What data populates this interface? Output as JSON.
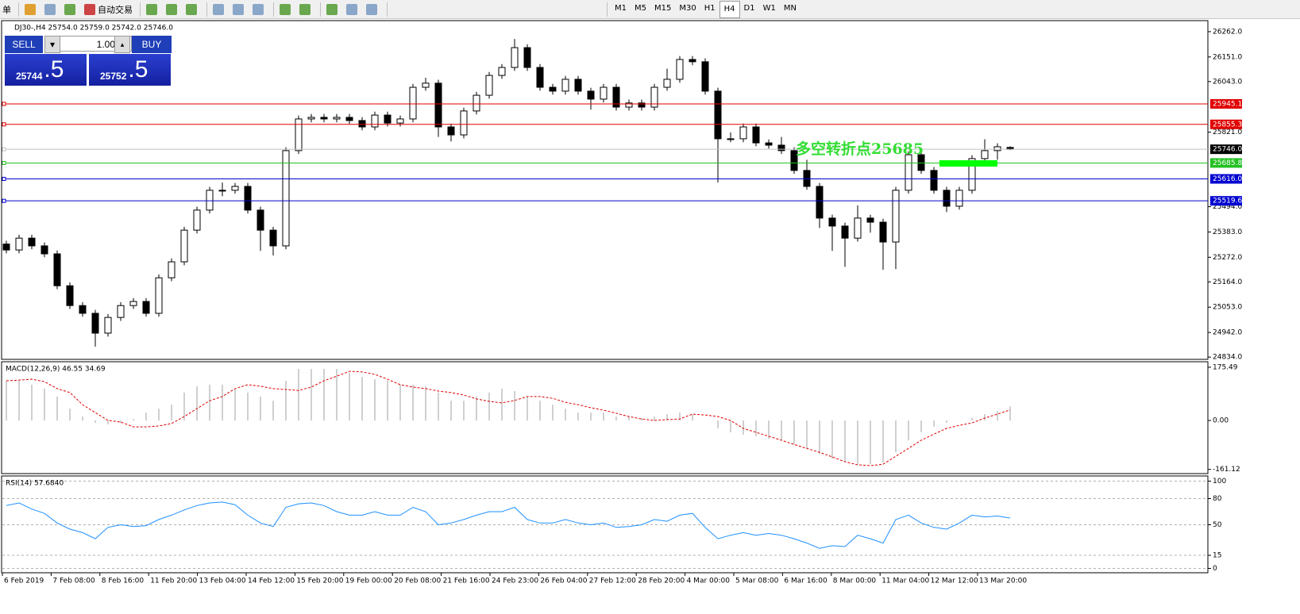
{
  "toolbar": {
    "order": "单",
    "auto_trading": "自动交易",
    "periods": [
      "M1",
      "M5",
      "M15",
      "M30",
      "H1",
      "H4",
      "D1",
      "W1",
      "MN"
    ]
  },
  "trade_panel": {
    "sell": "SELL",
    "buy": "BUY",
    "volume": "1.00",
    "sell_price_main": "25744",
    "sell_price_tail": ".5",
    "buy_price_main": "25752",
    "buy_price_tail": ".5"
  },
  "chart_data": [
    {
      "type": "candlestick",
      "title": "DJ30-,H4  25754.0 25759.0 25742.0 25746.0",
      "ylim": [
        24824,
        26307
      ],
      "yticks": [
        {
          "value": 26262,
          "label": "26262.0"
        },
        {
          "value": 26151,
          "label": "26151.0"
        },
        {
          "value": 26043,
          "label": "26043.0"
        },
        {
          "value": 25821,
          "label": "25821.0"
        },
        {
          "value": 25494,
          "label": "25494.0"
        },
        {
          "value": 25383,
          "label": "25383.0"
        },
        {
          "value": 25272,
          "label": "25272.0"
        },
        {
          "value": 25164,
          "label": "25164.0"
        },
        {
          "value": 25053,
          "label": "25053.0"
        },
        {
          "value": 24942,
          "label": "24942.0"
        },
        {
          "value": 24834,
          "label": "24834.0"
        }
      ],
      "open": [
        25330,
        25304,
        25356,
        25322,
        25287,
        25147,
        25060,
        25026,
        24939,
        25008,
        25060,
        25078,
        25026,
        25182,
        25252,
        25391,
        25479,
        25566,
        25566,
        25583,
        25479,
        25391,
        25322,
        25740,
        25879,
        25886,
        25879,
        25886,
        25872,
        25844,
        25896,
        25861,
        25879,
        26018,
        26036,
        25844,
        25809,
        25914,
        25983,
        26070,
        26105,
        26192,
        26105,
        26018,
        26001,
        26053,
        26001,
        25966,
        26018,
        25931,
        25949,
        25931,
        26018,
        26053,
        26140,
        26130,
        26001,
        25792,
        25792,
        25844,
        25774,
        25764,
        25740,
        25653,
        25583,
        25444,
        25409,
        25356,
        25444,
        25426,
        25339,
        25566,
        25722,
        25653,
        25566,
        25496,
        25566,
        25705,
        25740,
        25754
      ],
      "high": [
        25345,
        25371,
        25371,
        25337,
        25302,
        25162,
        25075,
        25041,
        25023,
        25075,
        25093,
        25093,
        25197,
        25267,
        25406,
        25494,
        25581,
        25600,
        25598,
        25598,
        25494,
        25406,
        25755,
        25894,
        25901,
        25901,
        25901,
        25901,
        25887,
        25911,
        25911,
        25894,
        26033,
        26060,
        26051,
        25859,
        25929,
        25998,
        26085,
        26120,
        26230,
        26207,
        26120,
        26033,
        26068,
        26068,
        26016,
        26033,
        26033,
        25964,
        25964,
        26033,
        26100,
        26155,
        26155,
        26145,
        26016,
        25820,
        25859,
        25859,
        25789,
        25800,
        25755,
        25700,
        25598,
        25459,
        25424,
        25500,
        25459,
        25441,
        25581,
        25737,
        25737,
        25668,
        25581,
        25581,
        25720,
        25790,
        25772,
        25759
      ],
      "low": [
        25289,
        25289,
        25307,
        25272,
        25132,
        25045,
        25011,
        24880,
        24924,
        24993,
        25045,
        25011,
        25011,
        25167,
        25237,
        25376,
        25464,
        25540,
        25551,
        25464,
        25300,
        25280,
        25307,
        25725,
        25864,
        25864,
        25864,
        25857,
        25829,
        25829,
        25846,
        25846,
        25864,
        26003,
        25800,
        25780,
        25794,
        25899,
        25968,
        26055,
        26090,
        26090,
        26003,
        25986,
        25986,
        25986,
        25920,
        25951,
        25916,
        25916,
        25916,
        25916,
        26003,
        26038,
        26115,
        25986,
        25600,
        25777,
        25777,
        25759,
        25749,
        25725,
        25638,
        25568,
        25400,
        25300,
        25230,
        25341,
        25380,
        25217,
        25220,
        25551,
        25638,
        25551,
        25470,
        25481,
        25551,
        25690,
        25700,
        25742
      ],
      "close": [
        25304,
        25356,
        25322,
        25287,
        25147,
        25060,
        25026,
        24939,
        25008,
        25060,
        25078,
        25026,
        25182,
        25252,
        25391,
        25479,
        25566,
        25566,
        25583,
        25479,
        25391,
        25322,
        25740,
        25879,
        25886,
        25879,
        25886,
        25872,
        25844,
        25896,
        25861,
        25879,
        26018,
        26036,
        25844,
        25809,
        25914,
        25983,
        26070,
        26105,
        26192,
        26105,
        26018,
        26001,
        26053,
        26001,
        25966,
        26018,
        25931,
        25949,
        25931,
        26018,
        26053,
        26140,
        26130,
        26001,
        25792,
        25792,
        25844,
        25774,
        25764,
        25740,
        25653,
        25583,
        25444,
        25409,
        25356,
        25444,
        25426,
        25339,
        25566,
        25722,
        25653,
        25566,
        25496,
        25566,
        25705,
        25740,
        25757,
        25746
      ],
      "levels": [
        {
          "value": 25945.1,
          "color": "#e00000"
        },
        {
          "value": 25855.3,
          "color": "#e00000"
        },
        {
          "value": 25746,
          "label": "25746.0",
          "color": "#000000"
        },
        {
          "value": 25685.8,
          "color": "#22c022"
        },
        {
          "value": 25616,
          "label": "25616.0",
          "color": "#0000d0"
        },
        {
          "value": 25519.6,
          "color": "#0000d0"
        }
      ],
      "annotation": "多空转折点25685",
      "x_labels": [
        "6 Feb 2019",
        "7 Feb 08:00",
        "8 Feb 16:00",
        "11 Feb 20:00",
        "13 Feb 04:00",
        "14 Feb 12:00",
        "15 Feb 20:00",
        "19 Feb 00:00",
        "20 Feb 08:00",
        "21 Feb 16:00",
        "24 Feb 23:00",
        "26 Feb 04:00",
        "27 Feb 12:00",
        "28 Feb 20:00",
        "4 Mar 00:00",
        "5 Mar 08:00",
        "6 Mar 16:00",
        "8 Mar 00:00",
        "11 Mar 04:00",
        "12 Mar 12:00",
        "13 Mar 20:00"
      ]
    },
    {
      "type": "macd",
      "title": "MACD(12,26,9) 46.55 34.69",
      "ylim": [
        -175,
        191
      ],
      "yticks": [
        175.49,
        {
          "value": 0,
          "label": "0.00"
        },
        -161.12
      ],
      "color": "#c0c0c0",
      "signal_color": "#e00000",
      "values": [
        131,
        131,
        118,
        105,
        79,
        39,
        13,
        -8,
        -13,
        -8,
        5,
        26,
        39,
        52,
        92,
        113,
        118,
        118,
        105,
        92,
        79,
        65,
        131,
        170,
        170,
        170,
        170,
        157,
        144,
        136,
        131,
        118,
        118,
        113,
        92,
        65,
        65,
        79,
        92,
        105,
        97,
        79,
        65,
        52,
        39,
        26,
        26,
        26,
        13,
        13,
        8,
        13,
        21,
        26,
        21,
        0,
        -26,
        -39,
        -47,
        -52,
        -60,
        -65,
        -79,
        -92,
        -110,
        -126,
        -136,
        -144,
        -144,
        -139,
        -105,
        -65,
        -39,
        -21,
        -8,
        0,
        8,
        21,
        31,
        46.55
      ],
      "signal": [
        131,
        133,
        136,
        128,
        105,
        92,
        52,
        26,
        0,
        -5,
        -21,
        -21,
        -18,
        -10,
        13,
        39,
        65,
        79,
        105,
        118,
        113,
        105,
        102,
        99,
        110,
        131,
        146,
        162,
        160,
        152,
        136,
        118,
        110,
        105,
        97,
        92,
        84,
        71,
        63,
        58,
        66,
        79,
        79,
        73,
        60,
        52,
        42,
        34,
        24,
        13,
        5,
        0,
        3,
        5,
        21,
        18,
        13,
        0,
        -26,
        -39,
        -52,
        -65,
        -79,
        -92,
        -105,
        -120,
        -136,
        -146,
        -149,
        -144,
        -118,
        -92,
        -65,
        -45,
        -26,
        -16,
        -8,
        8,
        21,
        34.69
      ]
    },
    {
      "type": "line",
      "title": "RSI(14) 57.6840",
      "ylim": [
        -5,
        105
      ],
      "yticks": [
        100,
        80,
        50,
        15,
        0
      ],
      "grid": true,
      "color": "#1e90ff",
      "values": [
        72,
        75,
        68,
        63,
        52,
        45,
        41,
        34,
        47,
        50,
        48,
        49,
        56,
        61,
        67,
        72,
        75,
        76,
        73,
        61,
        52,
        48,
        70,
        74,
        75,
        72,
        65,
        61,
        61,
        65,
        61,
        61,
        70,
        65,
        50,
        52,
        56,
        61,
        65,
        65,
        70,
        56,
        52,
        52,
        56,
        52,
        50,
        52,
        47,
        48,
        50,
        56,
        54,
        61,
        63,
        47,
        34,
        38,
        41,
        38,
        40,
        38,
        34,
        29,
        23,
        26,
        25,
        38,
        34,
        29,
        56,
        61,
        52,
        47,
        45,
        52,
        61,
        59,
        60,
        57.684
      ]
    }
  ]
}
